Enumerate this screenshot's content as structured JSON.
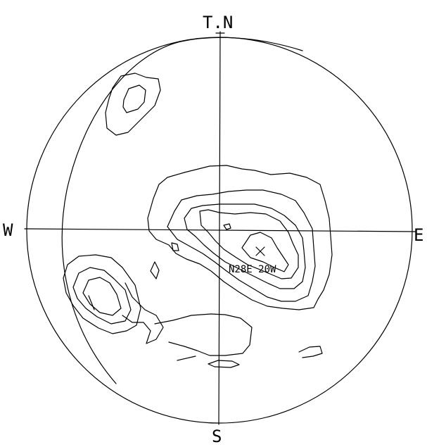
{
  "labels": {
    "north": "T.N",
    "south": "S",
    "west": "W",
    "east": "E",
    "pole": "N28E 20W"
  },
  "colors": {
    "line": "#000000",
    "background": "#ffffff"
  }
}
